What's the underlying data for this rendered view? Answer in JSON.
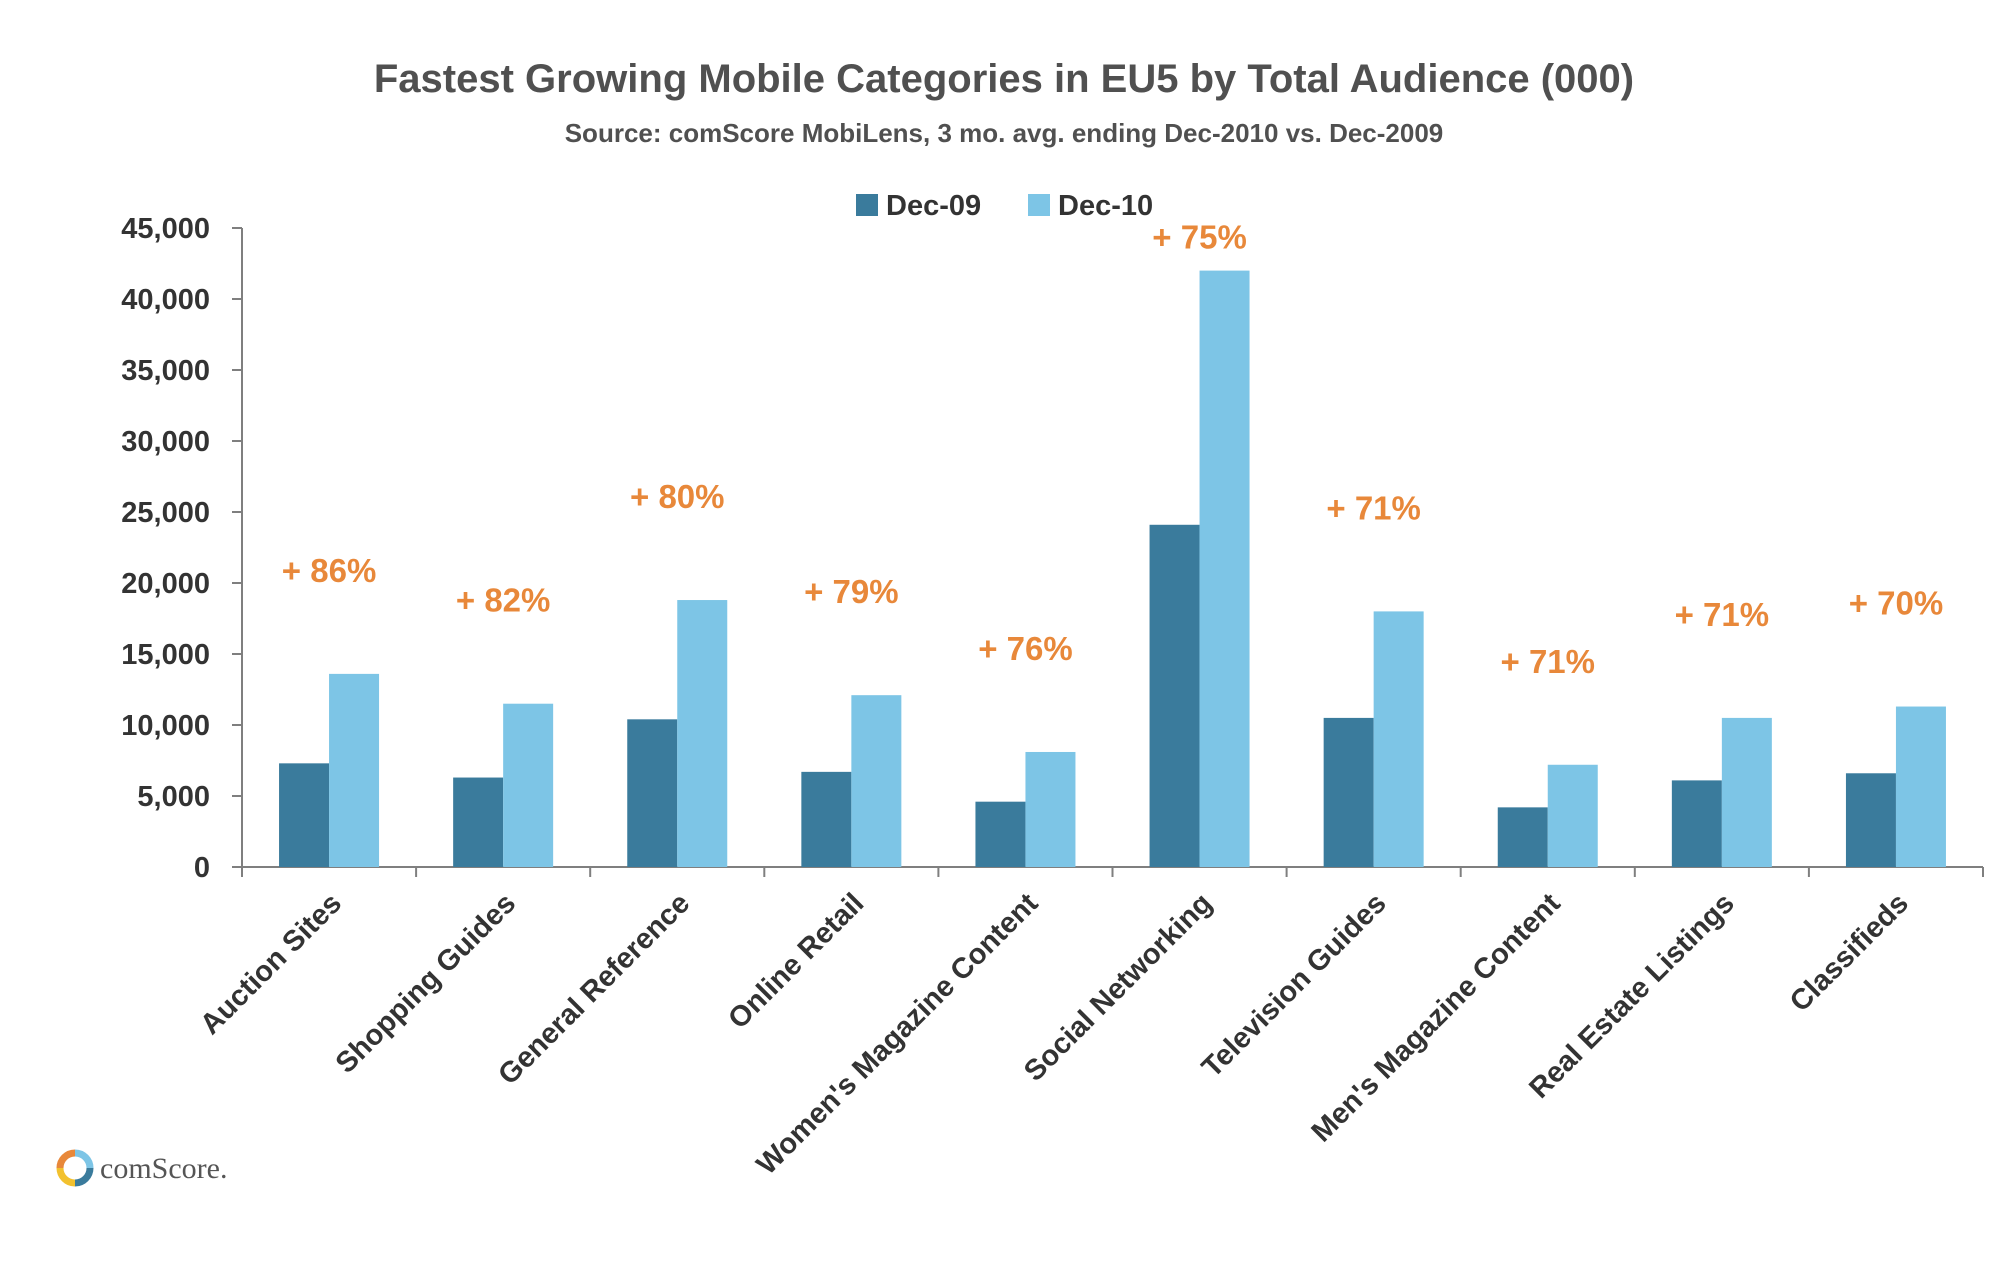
{
  "chart_data": {
    "type": "bar",
    "title": "Fastest Growing Mobile Categories in EU5 by Total Audience (000)",
    "subtitle": "Source: comScore MobiLens, 3 mo. avg. ending Dec-2010 vs. Dec-2009",
    "categories": [
      "Auction Sites",
      "Shopping Guides",
      "General Reference",
      "Online Retail",
      "Women's Magazine Content",
      "Social Networking",
      "Television Guides",
      "Men's Magazine Content",
      "Real Estate Listings",
      "Classifieds"
    ],
    "series": [
      {
        "name": "Dec-09",
        "color": "#3a7b9c",
        "values": [
          7300,
          6300,
          10400,
          6700,
          4600,
          24100,
          10500,
          4200,
          6100,
          6600
        ]
      },
      {
        "name": "Dec-10",
        "color": "#7dc5e6",
        "values": [
          13600,
          11500,
          18800,
          12100,
          8100,
          42000,
          18000,
          7200,
          10500,
          11300
        ]
      }
    ],
    "growth_labels": [
      "+ 86%",
      "+ 82%",
      "+ 80%",
      "+ 79%",
      "+ 76%",
      "+ 75%",
      "+ 71%",
      "+ 71%",
      "+ 71%",
      "+ 70%"
    ],
    "growth_color": "#e8883a",
    "y_ticks": [
      "0",
      "5,000",
      "10,000",
      "15,000",
      "20,000",
      "25,000",
      "30,000",
      "35,000",
      "40,000",
      "45,000"
    ],
    "ylim": [
      0,
      45000
    ],
    "legend_position": "top-center",
    "grid": false
  },
  "logo": {
    "text": "comScore."
  }
}
